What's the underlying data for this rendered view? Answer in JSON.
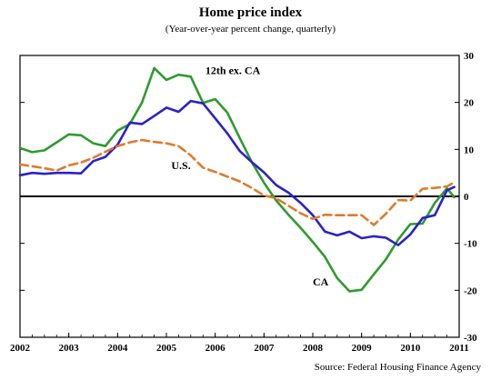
{
  "header": {
    "title": "Home price index",
    "subtitle": "(Year-over-year percent change, quarterly)"
  },
  "footer": {
    "source": "Source: Federal Housing Finance Agency"
  },
  "colors": {
    "ca": "#2E9B2E",
    "twelfth": "#2B22C8",
    "us": "#E07A2A",
    "axis": "#000000"
  },
  "chart_data": {
    "type": "line",
    "title": "Home price index",
    "subtitle": "(Year-over-year percent change, quarterly)",
    "xlabel": "",
    "ylabel": "",
    "xlim": [
      2002,
      2011
    ],
    "ylim": [
      -30,
      30
    ],
    "y_ticks": [
      30,
      20,
      10,
      0,
      -10,
      -20,
      -30
    ],
    "x_ticks": [
      2002,
      2003,
      2004,
      2005,
      2006,
      2007,
      2008,
      2009,
      2010,
      2011
    ],
    "grid": false,
    "series": [
      {
        "name": "CA",
        "color": "#2E9B2E",
        "dash": "solid",
        "x": [
          2002.0,
          2002.25,
          2002.5,
          2002.75,
          2003.0,
          2003.25,
          2003.5,
          2003.75,
          2004.0,
          2004.25,
          2004.5,
          2004.75,
          2005.0,
          2005.25,
          2005.5,
          2005.75,
          2006.0,
          2006.25,
          2006.5,
          2006.75,
          2007.0,
          2007.25,
          2007.5,
          2007.75,
          2008.0,
          2008.25,
          2008.5,
          2008.75,
          2009.0,
          2009.25,
          2009.5,
          2009.75,
          2010.0,
          2010.25,
          2010.5,
          2010.75,
          2010.9
        ],
        "y": [
          10.3,
          9.4,
          9.8,
          11.5,
          13.2,
          13.0,
          11.3,
          10.7,
          14.0,
          15.4,
          20.0,
          27.3,
          24.8,
          25.9,
          25.5,
          19.9,
          20.7,
          17.8,
          12.5,
          7.3,
          2.9,
          -0.9,
          -3.9,
          -6.7,
          -9.7,
          -12.9,
          -17.4,
          -20.2,
          -19.9,
          -16.6,
          -13.4,
          -9.2,
          -5.9,
          -5.8,
          -1.4,
          1.7,
          -0.2
        ]
      },
      {
        "name": "12th ex. CA",
        "color": "#2B22C8",
        "dash": "solid",
        "x": [
          2002.0,
          2002.25,
          2002.5,
          2002.75,
          2003.0,
          2003.25,
          2003.5,
          2003.75,
          2004.0,
          2004.25,
          2004.5,
          2004.75,
          2005.0,
          2005.25,
          2005.5,
          2005.75,
          2006.0,
          2006.25,
          2006.5,
          2006.75,
          2007.0,
          2007.25,
          2007.5,
          2007.75,
          2008.0,
          2008.25,
          2008.5,
          2008.75,
          2009.0,
          2009.25,
          2009.5,
          2009.75,
          2010.0,
          2010.25,
          2010.5,
          2010.75,
          2010.9
        ],
        "y": [
          4.5,
          5.0,
          4.8,
          5.0,
          5.0,
          4.9,
          7.5,
          8.4,
          11.0,
          15.7,
          15.4,
          17.1,
          18.9,
          18.0,
          20.3,
          19.8,
          16.6,
          13.4,
          9.7,
          7.3,
          5.1,
          2.4,
          0.8,
          -1.4,
          -4.0,
          -7.5,
          -8.3,
          -7.5,
          -8.9,
          -8.5,
          -8.8,
          -10.4,
          -8.1,
          -4.6,
          -4.0,
          1.3,
          2.0
        ]
      },
      {
        "name": "U.S.",
        "color": "#E07A2A",
        "dash": "dashed",
        "x": [
          2002.0,
          2002.25,
          2002.5,
          2002.75,
          2003.0,
          2003.25,
          2003.5,
          2003.75,
          2004.0,
          2004.25,
          2004.5,
          2004.75,
          2005.0,
          2005.25,
          2005.5,
          2005.75,
          2006.0,
          2006.25,
          2006.5,
          2006.75,
          2007.0,
          2007.25,
          2007.5,
          2007.75,
          2008.0,
          2008.25,
          2008.5,
          2008.75,
          2009.0,
          2009.25,
          2009.5,
          2009.75,
          2010.0,
          2010.25,
          2010.5,
          2010.75,
          2010.9
        ],
        "y": [
          6.8,
          6.4,
          6.0,
          5.5,
          6.6,
          7.2,
          8.2,
          9.5,
          10.7,
          11.5,
          12.0,
          11.6,
          11.3,
          10.7,
          8.7,
          6.1,
          5.2,
          4.2,
          3.2,
          1.8,
          0.2,
          -0.4,
          -2.0,
          -3.6,
          -4.8,
          -3.9,
          -4.0,
          -4.0,
          -4.0,
          -6.1,
          -3.7,
          -0.8,
          -0.9,
          1.6,
          1.8,
          2.1,
          3.0
        ]
      }
    ],
    "annotations": [
      {
        "text": "12th ex. CA",
        "x": 2005.8,
        "y": 26.0
      },
      {
        "text": "U.S.",
        "x": 2005.1,
        "y": 5.8
      },
      {
        "text": "CA",
        "x": 2008.0,
        "y": -19.0
      }
    ]
  }
}
